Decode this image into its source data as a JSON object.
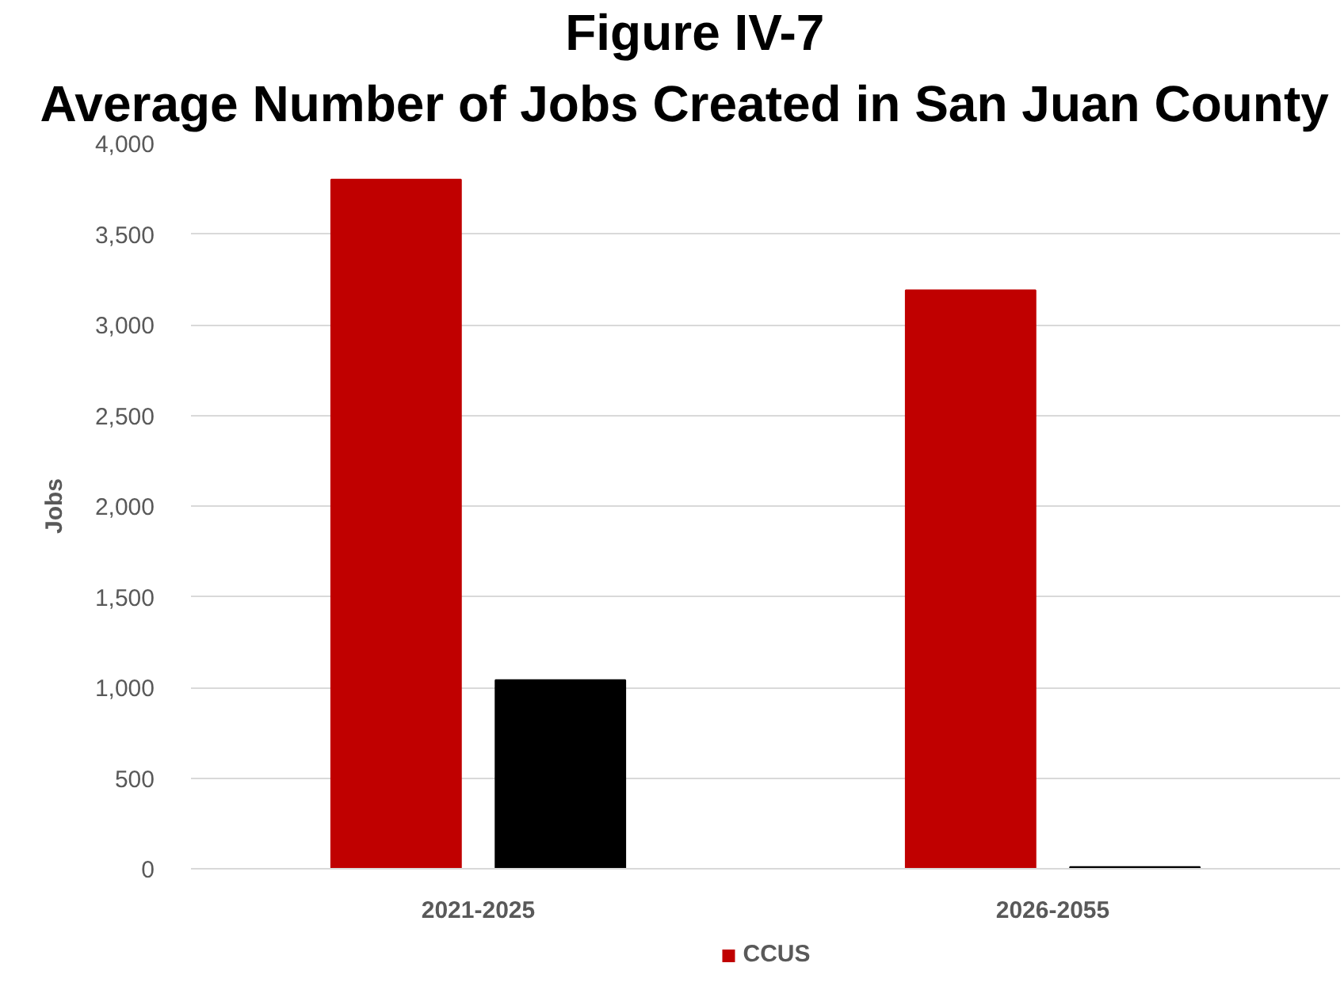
{
  "chart_data": {
    "type": "bar",
    "title": "Figure IV-7",
    "subtitle": "Average Number of Jobs Created in San Juan County",
    "ylabel": "Jobs",
    "categories": [
      "2021-2025",
      "2026-2055"
    ],
    "series": [
      {
        "name": "CCUS",
        "color": "#c00000",
        "values": [
          3800,
          3190
        ]
      },
      {
        "color": "#000000",
        "values": [
          1040,
          10
        ]
      }
    ],
    "ylim": [
      0,
      4000
    ],
    "yticks": [
      0,
      500,
      {
        "value": 1000,
        "label": "1,000"
      },
      {
        "value": 1500,
        "label": "1,500"
      },
      {
        "value": 2000,
        "label": "2,000"
      },
      {
        "value": 2500,
        "label": "2,500"
      },
      {
        "value": 3000,
        "label": "3,000"
      },
      {
        "value": 3500,
        "label": "3,500"
      },
      {
        "value": 4000,
        "label": "4,000"
      }
    ],
    "grid": "y",
    "legend": "bottom"
  }
}
